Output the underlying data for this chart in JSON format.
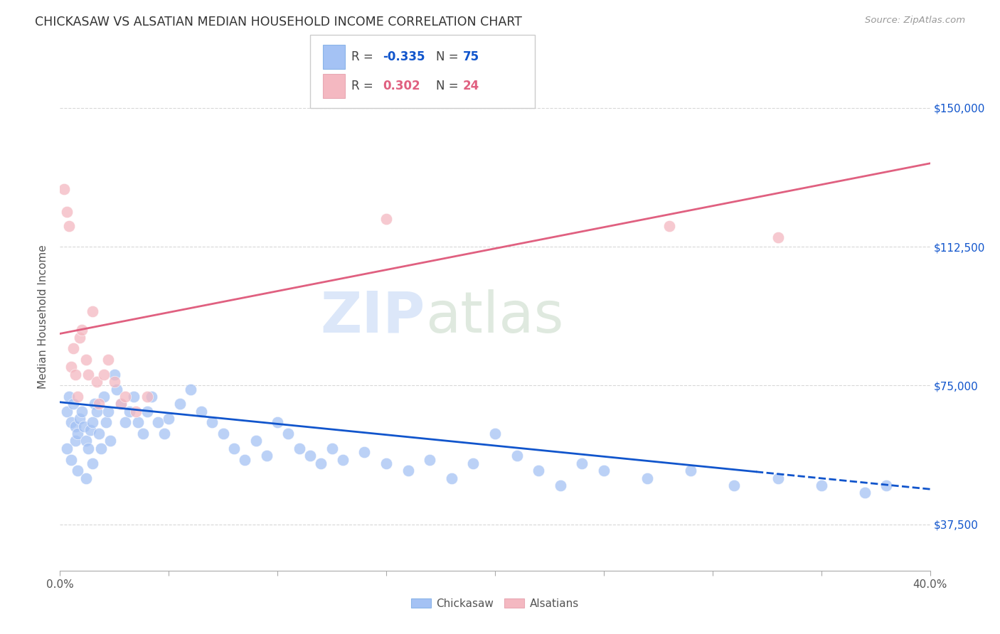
{
  "title": "CHICKASAW VS ALSATIAN MEDIAN HOUSEHOLD INCOME CORRELATION CHART",
  "source": "Source: ZipAtlas.com",
  "ylabel": "Median Household Income",
  "yticks": [
    37500,
    75000,
    112500,
    150000
  ],
  "ytick_labels": [
    "$37,500",
    "$75,000",
    "$112,500",
    "$150,000"
  ],
  "xlim": [
    0.0,
    0.4
  ],
  "ylim": [
    25000,
    162000
  ],
  "watermark_zip": "ZIP",
  "watermark_atlas": "atlas",
  "chickasaw_color": "#a4c2f4",
  "alsatian_color": "#f4b8c1",
  "trend_chickasaw_color": "#1155cc",
  "trend_alsatian_color": "#e06080",
  "legend_blue_r": "R = ",
  "legend_blue_val": "-0.335",
  "legend_blue_n_label": "  N = ",
  "legend_blue_n": "75",
  "legend_pink_r": "R = ",
  "legend_pink_val": "0.302",
  "legend_pink_n_label": "  N = ",
  "legend_pink_n": "24",
  "chickasaw_x": [
    0.003,
    0.004,
    0.005,
    0.006,
    0.007,
    0.007,
    0.008,
    0.009,
    0.01,
    0.011,
    0.012,
    0.013,
    0.014,
    0.015,
    0.016,
    0.017,
    0.018,
    0.019,
    0.02,
    0.021,
    0.022,
    0.023,
    0.025,
    0.026,
    0.028,
    0.03,
    0.032,
    0.034,
    0.036,
    0.038,
    0.04,
    0.042,
    0.045,
    0.048,
    0.05,
    0.055,
    0.06,
    0.065,
    0.07,
    0.075,
    0.08,
    0.085,
    0.09,
    0.095,
    0.1,
    0.105,
    0.11,
    0.115,
    0.12,
    0.125,
    0.13,
    0.14,
    0.15,
    0.16,
    0.17,
    0.18,
    0.19,
    0.2,
    0.21,
    0.22,
    0.23,
    0.24,
    0.25,
    0.27,
    0.29,
    0.31,
    0.33,
    0.35,
    0.37,
    0.38,
    0.003,
    0.005,
    0.008,
    0.012,
    0.015
  ],
  "chickasaw_y": [
    68000,
    72000,
    65000,
    70000,
    64000,
    60000,
    62000,
    66000,
    68000,
    64000,
    60000,
    58000,
    63000,
    65000,
    70000,
    68000,
    62000,
    58000,
    72000,
    65000,
    68000,
    60000,
    78000,
    74000,
    70000,
    65000,
    68000,
    72000,
    65000,
    62000,
    68000,
    72000,
    65000,
    62000,
    66000,
    70000,
    74000,
    68000,
    65000,
    62000,
    58000,
    55000,
    60000,
    56000,
    65000,
    62000,
    58000,
    56000,
    54000,
    58000,
    55000,
    57000,
    54000,
    52000,
    55000,
    50000,
    54000,
    62000,
    56000,
    52000,
    48000,
    54000,
    52000,
    50000,
    52000,
    48000,
    50000,
    48000,
    46000,
    48000,
    58000,
    55000,
    52000,
    50000,
    54000
  ],
  "alsatian_x": [
    0.002,
    0.003,
    0.004,
    0.005,
    0.006,
    0.007,
    0.008,
    0.009,
    0.01,
    0.012,
    0.013,
    0.015,
    0.017,
    0.018,
    0.02,
    0.022,
    0.025,
    0.028,
    0.03,
    0.035,
    0.04,
    0.15,
    0.28,
    0.33
  ],
  "alsatian_y": [
    128000,
    122000,
    118000,
    80000,
    85000,
    78000,
    72000,
    88000,
    90000,
    82000,
    78000,
    95000,
    76000,
    70000,
    78000,
    82000,
    76000,
    70000,
    72000,
    68000,
    72000,
    120000,
    118000,
    115000
  ],
  "trend_chick_x0": 0.0,
  "trend_chick_x1": 0.4,
  "trend_chick_y0": 70500,
  "trend_chick_y1": 47000,
  "trend_chick_solid_end": 0.32,
  "trend_alsat_x0": 0.0,
  "trend_alsat_x1": 0.4,
  "trend_alsat_y0": 89000,
  "trend_alsat_y1": 135000
}
